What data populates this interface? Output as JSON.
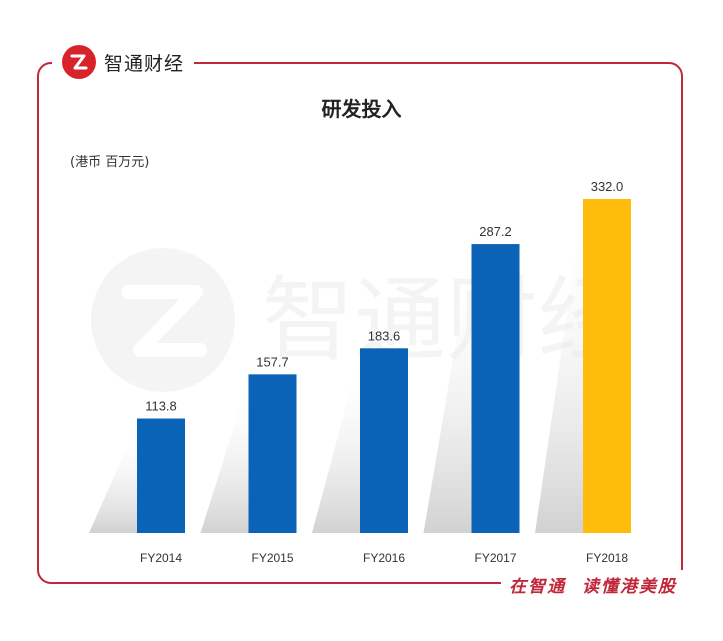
{
  "brand": {
    "name": "智通财经",
    "logo_mark": "z-logo-icon"
  },
  "footer": {
    "slogan": "在智通  读懂港美股"
  },
  "chart_data": {
    "type": "bar",
    "title": "研发投入",
    "unit_label": "(港币 百万元)",
    "categories": [
      "FY2014",
      "FY2015",
      "FY2016",
      "FY2017",
      "FY2018"
    ],
    "values": [
      113.8,
      157.7,
      183.6,
      287.2,
      332.0
    ],
    "value_labels": [
      "113.8",
      "157.7",
      "183.6",
      "287.2",
      "332.0"
    ],
    "colors": [
      "#0a63b6",
      "#0a63b6",
      "#0a63b6",
      "#0a63b6",
      "#fdbd0a"
    ],
    "ylim": [
      0,
      332.0
    ],
    "grid": false,
    "legend": "none"
  },
  "colors": {
    "frame": "#c0283a",
    "accent": "#d8232a"
  }
}
